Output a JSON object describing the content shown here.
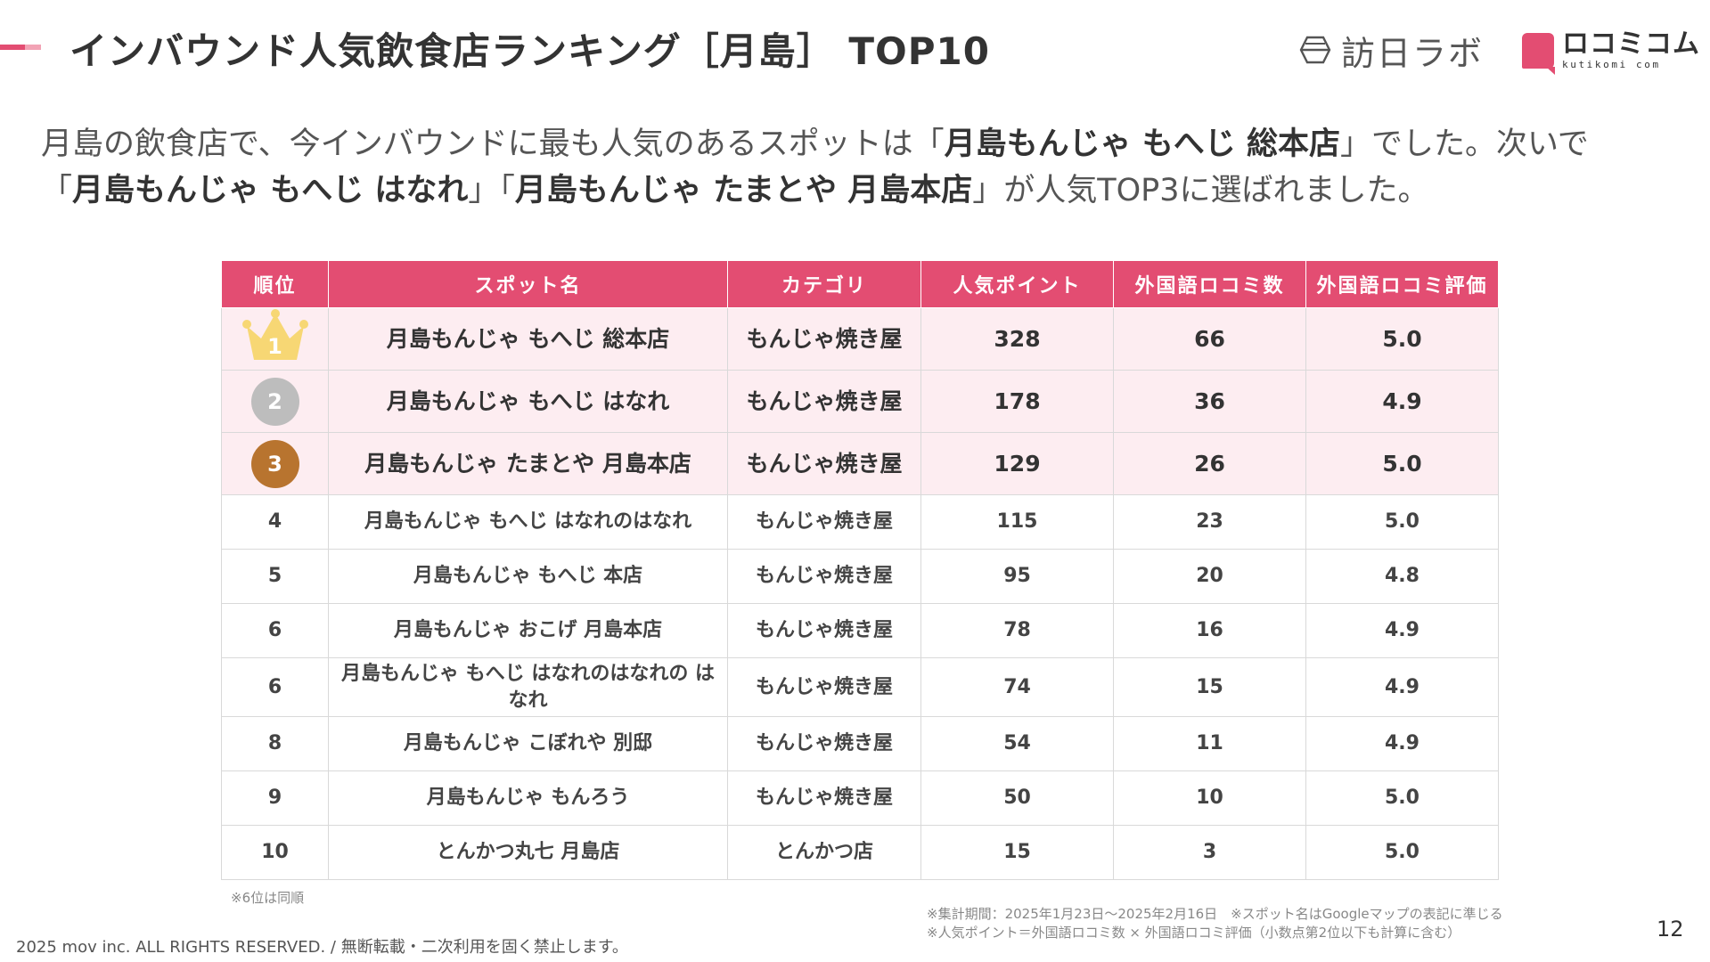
{
  "title": "インバウンド人気飲食店ランキング［月島］ TOP10",
  "logos": {
    "houjin": "訪日ラボ",
    "kuchikomi_jp": "ロコミコム",
    "kuchikomi_en": "kutikomi com"
  },
  "lead": {
    "l1_a": "月島の飲食店で、今インバウンドに最も人気のあるスポットは「",
    "l1_b": "月島もんじゃ もへじ 総本店",
    "l1_c": "」でした。次いで",
    "l2_a": "「",
    "l2_b": "月島もんじゃ もへじ はなれ",
    "l2_c": "」「",
    "l2_d": "月島もんじゃ たまとや 月島本店",
    "l2_e": "」が人気TOP3に選ばれました。"
  },
  "table": {
    "headers": [
      "順位",
      "スポット名",
      "カテゴリ",
      "人気ポイント",
      "外国語ロコミ数",
      "外国語ロコミ評価"
    ],
    "rows": [
      {
        "rank": "1",
        "name": "月島もんじゃ もへじ 総本店",
        "category": "もんじゃ焼き屋",
        "points": "328",
        "reviews": "66",
        "rating": "5.0"
      },
      {
        "rank": "2",
        "name": "月島もんじゃ もへじ はなれ",
        "category": "もんじゃ焼き屋",
        "points": "178",
        "reviews": "36",
        "rating": "4.9"
      },
      {
        "rank": "3",
        "name": "月島もんじゃ たまとや 月島本店",
        "category": "もんじゃ焼き屋",
        "points": "129",
        "reviews": "26",
        "rating": "5.0"
      },
      {
        "rank": "4",
        "name": "月島もんじゃ もへじ はなれのはなれ",
        "category": "もんじゃ焼き屋",
        "points": "115",
        "reviews": "23",
        "rating": "5.0"
      },
      {
        "rank": "5",
        "name": "月島もんじゃ もへじ 本店",
        "category": "もんじゃ焼き屋",
        "points": "95",
        "reviews": "20",
        "rating": "4.8"
      },
      {
        "rank": "6",
        "name": "月島もんじゃ おこげ 月島本店",
        "category": "もんじゃ焼き屋",
        "points": "78",
        "reviews": "16",
        "rating": "4.9"
      },
      {
        "rank": "6",
        "name": "月島もんじゃ もへじ はなれのはなれの はなれ",
        "category": "もんじゃ焼き屋",
        "points": "74",
        "reviews": "15",
        "rating": "4.9"
      },
      {
        "rank": "8",
        "name": "月島もんじゃ こぼれや 別邸",
        "category": "もんじゃ焼き屋",
        "points": "54",
        "reviews": "11",
        "rating": "4.9"
      },
      {
        "rank": "9",
        "name": "月島もんじゃ もんろう",
        "category": "もんじゃ焼き屋",
        "points": "50",
        "reviews": "10",
        "rating": "5.0"
      },
      {
        "rank": "10",
        "name": "とんかつ丸七 月島店",
        "category": "とんかつ店",
        "points": "15",
        "reviews": "3",
        "rating": "5.0"
      }
    ]
  },
  "note_tie": "※6位は同順",
  "notes": [
    "※集計期間：2025年1月23日〜2025年2月16日　※スポット名はGoogleマップの表記に準じる",
    "※人気ポイント＝外国語ロコミ数 × 外国語ロコミ評価（小数点第2位以下も計算に含む）"
  ],
  "copyright": "2025 mov inc. ALL RIGHTS RESERVED. / 無断転載・二次利用を固く禁止します。",
  "page_number": "12",
  "colors": {
    "accent": "#e34d72",
    "accent_light": "#f2a3b5",
    "top3_row_bg": "#fdedf1",
    "gold": "#f7d774",
    "silver": "#bdbdbd",
    "bronze": "#b8742f"
  }
}
